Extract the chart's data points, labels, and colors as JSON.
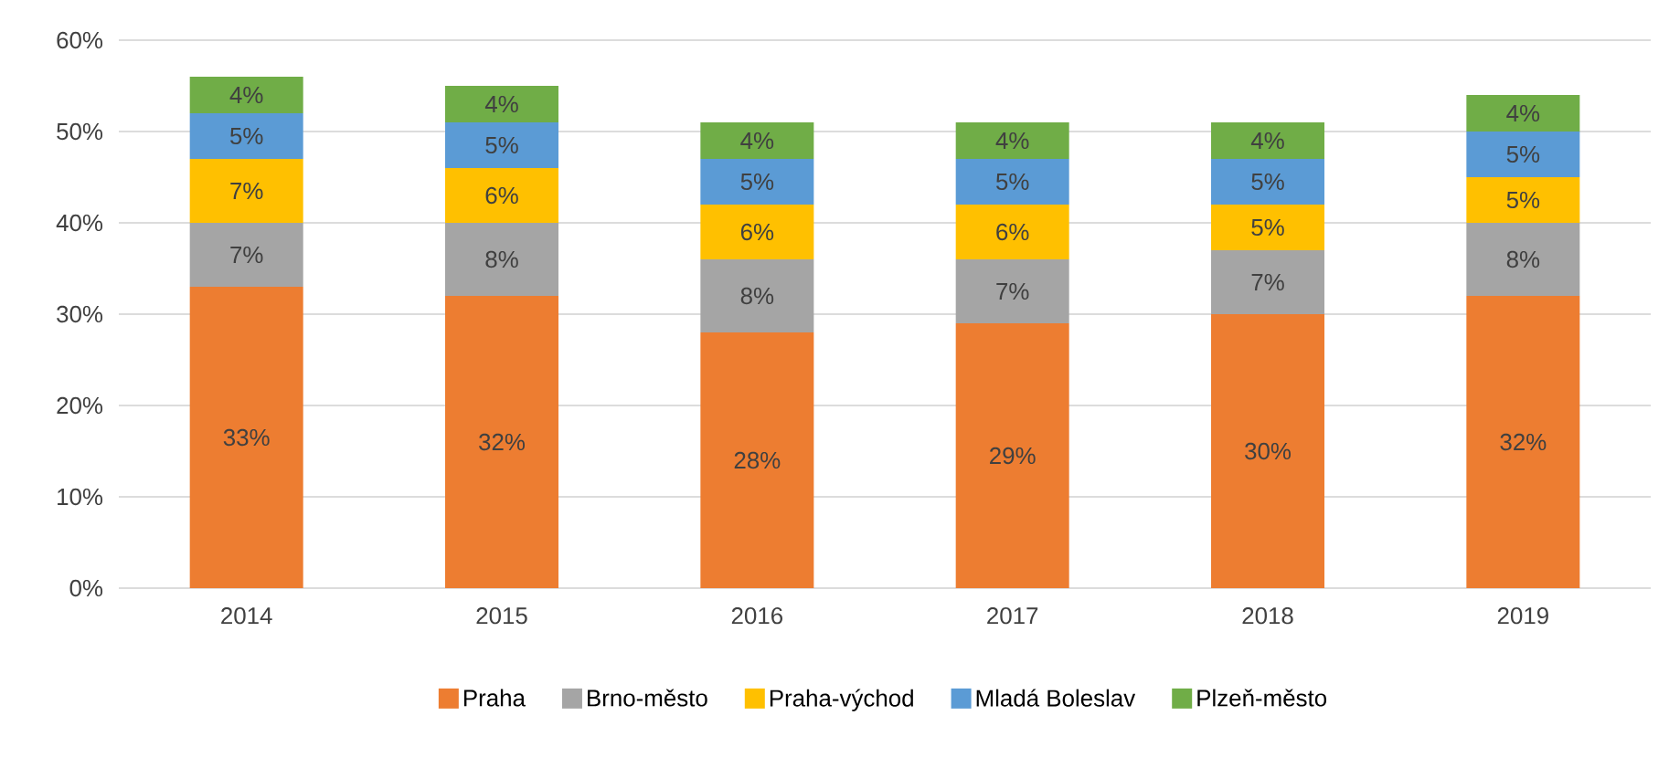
{
  "chart_data": {
    "type": "bar",
    "stacked": true,
    "categories": [
      "2014",
      "2015",
      "2016",
      "2017",
      "2018",
      "2019"
    ],
    "series": [
      {
        "name": "Praha",
        "color": "#ed7d31",
        "values": [
          33,
          32,
          28,
          29,
          30,
          32
        ],
        "value_labels": [
          "33%",
          "32%",
          "28%",
          "29%",
          "30%",
          "32%"
        ]
      },
      {
        "name": "Brno-město",
        "color": "#a5a5a5",
        "values": [
          7,
          8,
          8,
          7,
          7,
          8
        ],
        "value_labels": [
          "7%",
          "8%",
          "8%",
          "7%",
          "7%",
          "8%"
        ]
      },
      {
        "name": "Praha-východ",
        "color": "#ffc000",
        "values": [
          7,
          6,
          6,
          6,
          5,
          5
        ],
        "value_labels": [
          "7%",
          "6%",
          "6%",
          "6%",
          "5%",
          "5%"
        ]
      },
      {
        "name": "Mladá Boleslav",
        "color": "#5b9bd5",
        "values": [
          5,
          5,
          5,
          5,
          5,
          5
        ],
        "value_labels": [
          "5%",
          "5%",
          "5%",
          "5%",
          "5%",
          "5%"
        ]
      },
      {
        "name": "Plzeň-město",
        "color": "#70ad47",
        "values": [
          4,
          4,
          4,
          4,
          4,
          4
        ],
        "value_labels": [
          "4%",
          "4%",
          "4%",
          "4%",
          "4%",
          "4%"
        ]
      }
    ],
    "ylim": [
      0,
      60
    ],
    "yticks": [
      {
        "value": 0,
        "label": "0%"
      },
      {
        "value": 10,
        "label": "10%"
      },
      {
        "value": 20,
        "label": "20%"
      },
      {
        "value": 30,
        "label": "30%"
      },
      {
        "value": 40,
        "label": "40%"
      },
      {
        "value": 50,
        "label": "50%"
      },
      {
        "value": 60,
        "label": "60%"
      }
    ],
    "grid": "y",
    "legend": "bottom"
  }
}
